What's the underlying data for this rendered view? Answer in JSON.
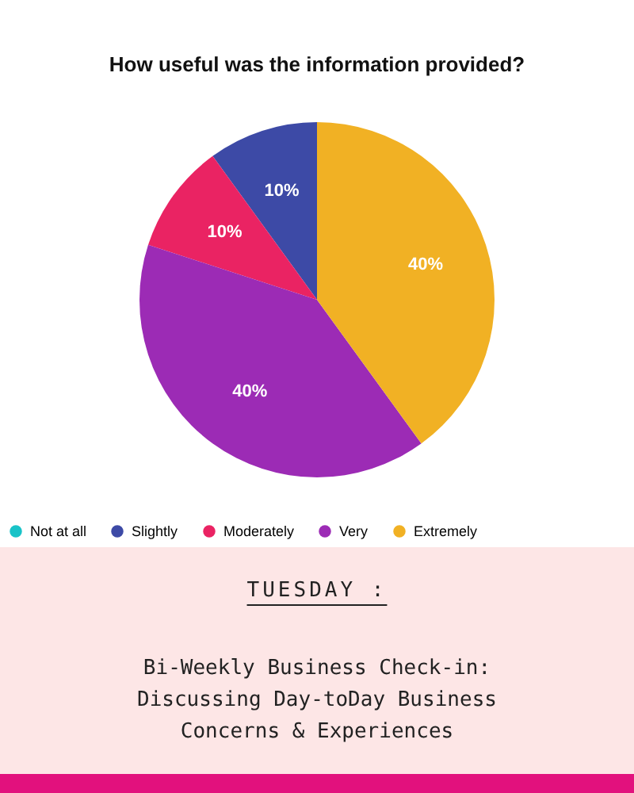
{
  "chart_data": {
    "type": "pie",
    "title": "How useful was the information provided?",
    "categories": [
      "Not at all",
      "Slightly",
      "Moderately",
      "Very",
      "Extremely"
    ],
    "values": [
      0,
      10,
      10,
      40,
      40
    ],
    "colors": [
      "#19c3c8",
      "#3d4aa6",
      "#ea2363",
      "#9c2bb5",
      "#f1b124"
    ],
    "value_labels": [
      null,
      "10%",
      "10%",
      "40%",
      "40%"
    ],
    "legend": "bottom",
    "annotations": [
      "TUESDAY :",
      "Bi-Weekly Business Check-in:",
      "Discussing Day-toDay Business",
      "Concerns & Experiences"
    ]
  }
}
